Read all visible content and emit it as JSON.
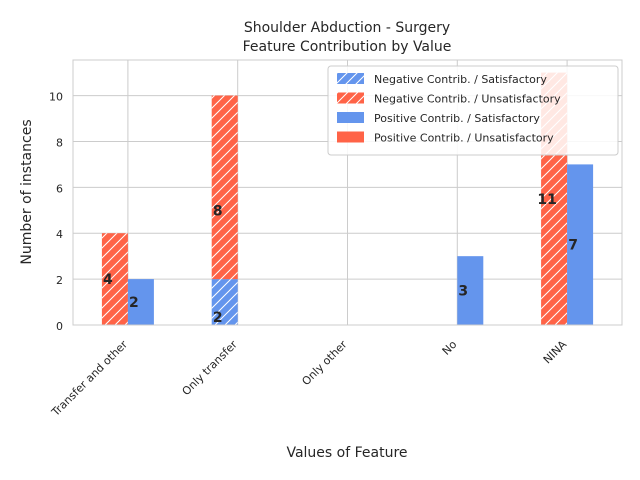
{
  "chart_data": {
    "type": "bar",
    "title_lines": [
      "Shoulder Abduction - Surgery",
      "Feature Contribution by Value"
    ],
    "xlabel": "Values of Feature",
    "ylabel": "Number of instances",
    "categories": [
      "Transfer and other",
      "Only transfer",
      "Only other",
      "No",
      "NINA"
    ],
    "ylim": [
      0,
      11.55
    ],
    "yticks": [
      0,
      2,
      4,
      6,
      8,
      10
    ],
    "grid": true,
    "legend_position": "top-right",
    "colors": {
      "satisfactory": "#6495ED",
      "unsatisfactory": "#FF6347",
      "grid": "#CCCCCC",
      "axis": "#CCCCCC"
    },
    "series": [
      {
        "name": "Negative Contrib. / Satisfactory",
        "group": "negative",
        "outcome": "satisfactory",
        "hatch": true,
        "values": [
          0,
          2,
          0,
          0,
          0
        ]
      },
      {
        "name": "Negative Contrib. / Unsatisfactory",
        "group": "negative",
        "outcome": "unsatisfactory",
        "hatch": true,
        "values": [
          4,
          8,
          0,
          0,
          11
        ]
      },
      {
        "name": "Positive Contrib. / Satisfactory",
        "group": "positive",
        "outcome": "satisfactory",
        "hatch": false,
        "values": [
          2,
          0,
          0,
          3,
          7
        ]
      },
      {
        "name": "Positive Contrib. / Unsatisfactory",
        "group": "positive",
        "outcome": "unsatisfactory",
        "hatch": false,
        "values": [
          0,
          0,
          0,
          0,
          0
        ]
      }
    ],
    "data_labels": [
      {
        "category": "Transfer and other",
        "group": "negative",
        "text": "4"
      },
      {
        "category": "Transfer and other",
        "group": "positive",
        "text": "2"
      },
      {
        "category": "Only transfer",
        "group": "negative",
        "text": "8"
      },
      {
        "category": "Only transfer",
        "group": "negative",
        "text": "2",
        "at_bottom": true
      },
      {
        "category": "No",
        "group": "positive",
        "text": "3"
      },
      {
        "category": "NINA",
        "group": "negative",
        "text": "11"
      },
      {
        "category": "NINA",
        "group": "positive",
        "text": "7"
      }
    ]
  }
}
